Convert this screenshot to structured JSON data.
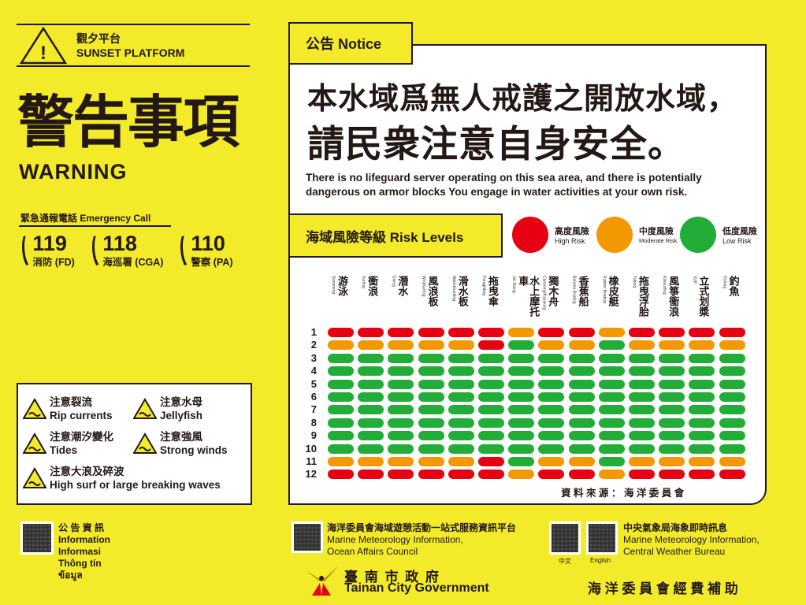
{
  "header": {
    "location_zh": "觀夕平台",
    "location_en": "SUNSET PLATFORM",
    "title_zh": "警告事項",
    "title_en": "WARNING",
    "warning_icon": "warning-triangle-icon"
  },
  "emergency": {
    "label": "緊急通報電話 Emergency Call",
    "contacts": [
      {
        "number": "119",
        "label": "消防 (FD)"
      },
      {
        "number": "118",
        "label": "海巡署 (CGA)"
      },
      {
        "number": "110",
        "label": "警察 (PA)"
      }
    ],
    "icon": "phone-icon"
  },
  "hazards": [
    {
      "zh": "注意裂流",
      "en": "Rip currents"
    },
    {
      "zh": "注意水母",
      "en": "Jellyfish"
    },
    {
      "zh": "注意潮汐變化",
      "en": "Tides"
    },
    {
      "zh": "注意強風",
      "en": "Strong winds"
    },
    {
      "zh": "注意大浪及碎波",
      "en": "High surf or large breaking waves"
    }
  ],
  "notice": {
    "tag": "公告 Notice",
    "line1": "本水域爲無人戒護之開放水域，",
    "line2": "請民衆注意自身安全。",
    "en1": "There is no lifeguard server operating on this sea area, and there is potentially",
    "en2": "dangerous on armor blocks You engage in water activities at your own risk."
  },
  "risk": {
    "title": "海域風險等級 Risk Levels",
    "legend": [
      {
        "zh": "高度風險",
        "en": "High Risk",
        "color": "#e60012"
      },
      {
        "zh": "中度風險",
        "en": "Moderate Risk",
        "color": "#f39800"
      },
      {
        "zh": "低度風險",
        "en": "Low Risk",
        "color": "#22ac38"
      }
    ],
    "activities": [
      {
        "zh": "游泳",
        "en": "Swimming"
      },
      {
        "zh": "衝浪",
        "en": "Surfing"
      },
      {
        "zh": "潛水",
        "en": "Diving"
      },
      {
        "zh": "風浪板",
        "en": "Windsurfing"
      },
      {
        "zh": "滑水板",
        "en": "Wakeboarding"
      },
      {
        "zh": "拖曳傘",
        "en": "Paragliding"
      },
      {
        "zh": "水上摩托車",
        "en": "Jet Skiing"
      },
      {
        "zh": "獨木舟",
        "en": "Canoeing/Kayaking"
      },
      {
        "zh": "香蕉船",
        "en": "Banana Boating"
      },
      {
        "zh": "橡皮艇",
        "en": "Rubber Boating"
      },
      {
        "zh": "拖曳浮胎",
        "en": "Tubing"
      },
      {
        "zh": "風箏衝浪",
        "en": "Kitesurfing"
      },
      {
        "zh": "立式划槳",
        "en": "SUP"
      },
      {
        "zh": "釣魚",
        "en": "Fishing"
      }
    ],
    "months": [
      "1",
      "2",
      "3",
      "4",
      "5",
      "6",
      "7",
      "8",
      "9",
      "10",
      "11",
      "12"
    ],
    "levels": [
      "HHHHHHMHHMHHHH",
      "MMMMMHLMMLMMMM",
      "LLLLLLLLLLLLLL",
      "LLLLLLLLLLLLLL",
      "LLLLLLLLLLLLLL",
      "LLLLLLLLLLLLLL",
      "LLLLLLLLLLLLLL",
      "LLLLLLLLLLLLLL",
      "LLLLLLLLLLLLLL",
      "LLLLLLLLLLLLLL",
      "MMMMMHLMMLMMMM",
      "HHHHHHMHHMHHHH"
    ],
    "source": "資 料 來 源 ： 海 洋 委 員 會"
  },
  "footer": {
    "info": [
      "公 告 資 訊",
      "Information",
      "Informasi",
      "Thông tín",
      "ข้อมูล"
    ],
    "oac_zh": "海洋委員會海域遊憩活動一站式服務資訊平台",
    "oac_en1": "Marine Meteorology Information,",
    "oac_en2": "Ocean Affairs Council",
    "cwb_zh": "中央氣象局海象即時訊息",
    "cwb_en1": "Marine Meteorology Information,",
    "cwb_en2": "Central Weather Bureau",
    "qr_zh": "中文",
    "qr_en": "English",
    "gov_zh": "臺 南 市 政 府",
    "gov_en": "Tainan City Government",
    "sponsor": "海 洋 委 員 會 經 費 補 助"
  }
}
